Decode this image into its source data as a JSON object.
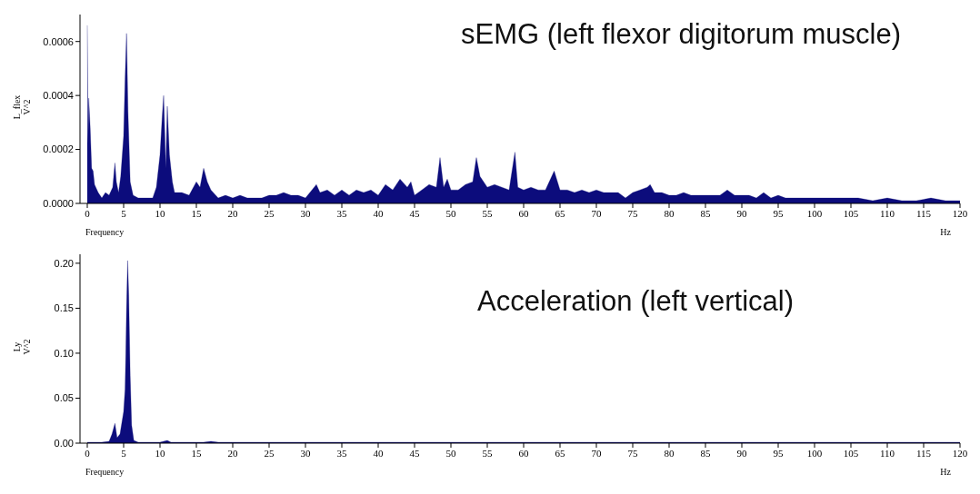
{
  "chart_data": [
    {
      "type": "area",
      "title": "sEMG (left flexor digitorum muscle)",
      "xlabel": "Frequency",
      "ylabel": "L_flex\nV^2",
      "annotations": [
        "Hz"
      ],
      "color": "#0c0c7c",
      "x": [
        0,
        0.1,
        0.2,
        0.4,
        0.6,
        0.8,
        1,
        1.5,
        2,
        2.5,
        3,
        3.5,
        3.8,
        4,
        4.3,
        4.6,
        5,
        5.2,
        5.4,
        5.6,
        5.9,
        6.3,
        7,
        8,
        9,
        9.5,
        10,
        10.3,
        10.5,
        10.8,
        11,
        11.3,
        11.7,
        12,
        13,
        14,
        15,
        15.5,
        16,
        16.5,
        17,
        18,
        19,
        20,
        21,
        22,
        23,
        24,
        25,
        26,
        27,
        28,
        29,
        30,
        31.5,
        32,
        33,
        34,
        35,
        36,
        37,
        38,
        39,
        40,
        41,
        42,
        43,
        44,
        44.5,
        45,
        46,
        47,
        48,
        48.5,
        49,
        49.5,
        50,
        51,
        52,
        53,
        53.5,
        54,
        55,
        56,
        57,
        58,
        58.8,
        59.2,
        60,
        61,
        62,
        63,
        64.2,
        65,
        66,
        67,
        68,
        69,
        70,
        71,
        72,
        73,
        74,
        75,
        76,
        77,
        77.4,
        78,
        79,
        80,
        81,
        82,
        83,
        84,
        85,
        86,
        87,
        88,
        89,
        90,
        91,
        92,
        93,
        94,
        95,
        96,
        97,
        98,
        99,
        100,
        102,
        104,
        106,
        108,
        110,
        112,
        114,
        116,
        118,
        120
      ],
      "values": [
        0.00066,
        0.00022,
        0.00039,
        0.00028,
        0.00013,
        0.00012,
        7e-05,
        4e-05,
        2e-05,
        4e-05,
        3e-05,
        6e-05,
        0.00015,
        8e-05,
        4e-05,
        0.0001,
        0.00025,
        0.00046,
        0.00063,
        0.00034,
        8e-05,
        3e-05,
        2e-05,
        2e-05,
        2e-05,
        6e-05,
        0.00018,
        0.00032,
        0.0004,
        0.00013,
        0.00036,
        0.00018,
        8e-05,
        4e-05,
        4e-05,
        3e-05,
        8e-05,
        6e-05,
        0.00013,
        8e-05,
        5e-05,
        2e-05,
        3e-05,
        2e-05,
        3e-05,
        2e-05,
        2e-05,
        2e-05,
        3e-05,
        3e-05,
        4e-05,
        3e-05,
        3e-05,
        2e-05,
        7e-05,
        4e-05,
        5e-05,
        3e-05,
        5e-05,
        3e-05,
        5e-05,
        4e-05,
        5e-05,
        3e-05,
        7e-05,
        5e-05,
        9e-05,
        6e-05,
        8e-05,
        3e-05,
        5e-05,
        7e-05,
        6e-05,
        0.00017,
        6e-05,
        9e-05,
        5e-05,
        5e-05,
        7e-05,
        8e-05,
        0.00017,
        0.0001,
        6e-05,
        7e-05,
        6e-05,
        5e-05,
        0.00019,
        6e-05,
        5e-05,
        6e-05,
        5e-05,
        5e-05,
        0.00012,
        5e-05,
        5e-05,
        4e-05,
        5e-05,
        4e-05,
        5e-05,
        4e-05,
        4e-05,
        4e-05,
        2e-05,
        4e-05,
        5e-05,
        6e-05,
        7e-05,
        4e-05,
        4e-05,
        3e-05,
        3e-05,
        4e-05,
        3e-05,
        3e-05,
        3e-05,
        3e-05,
        3e-05,
        5e-05,
        3e-05,
        3e-05,
        3e-05,
        2e-05,
        4e-05,
        2e-05,
        3e-05,
        2e-05,
        2e-05,
        2e-05,
        2e-05,
        2e-05,
        2e-05,
        2e-05,
        2e-05,
        1e-05,
        2e-05,
        1e-05,
        1e-05,
        2e-05,
        1e-05,
        1e-05
      ],
      "xlim": [
        -1,
        120
      ],
      "xticks": [
        0,
        5,
        10,
        15,
        20,
        25,
        30,
        35,
        40,
        45,
        50,
        55,
        60,
        65,
        70,
        75,
        80,
        85,
        90,
        95,
        100,
        105,
        110,
        115,
        120
      ],
      "ylim": [
        0,
        0.0007
      ],
      "yticks": [
        {
          "value": 0,
          "label": "0.0000"
        },
        {
          "value": 0.0002,
          "label": "0.0002"
        },
        {
          "value": 0.0004,
          "label": "0.0004"
        },
        {
          "value": 0.0006,
          "label": "0.0006"
        }
      ],
      "grid": false
    },
    {
      "type": "area",
      "title": "Acceleration (left vertical)",
      "xlabel": "Frequency",
      "ylabel": "Ly\nV^2",
      "annotations": [
        "Hz"
      ],
      "color": "#0c0c7c",
      "x": [
        0,
        2,
        3,
        3.4,
        3.8,
        4.1,
        4.5,
        5,
        5.2,
        5.3,
        5.4,
        5.55,
        5.7,
        5.9,
        6.1,
        6.4,
        7,
        9,
        10,
        11,
        11.5,
        13,
        16,
        17,
        18,
        25,
        120
      ],
      "values": [
        0.001,
        0.001,
        0.002,
        0.01,
        0.022,
        0.006,
        0.01,
        0.035,
        0.06,
        0.1,
        0.15,
        0.203,
        0.165,
        0.075,
        0.02,
        0.003,
        0.001,
        0.001,
        0.001,
        0.003,
        0.001,
        0.001,
        0.001,
        0.002,
        0.001,
        0.001,
        0.001
      ],
      "xlim": [
        -1,
        120
      ],
      "xticks": [
        0,
        5,
        10,
        15,
        20,
        25,
        30,
        35,
        40,
        45,
        50,
        55,
        60,
        65,
        70,
        75,
        80,
        85,
        90,
        95,
        100,
        105,
        110,
        115,
        120
      ],
      "ylim": [
        0,
        0.21
      ],
      "yticks": [
        {
          "value": 0,
          "label": "0.00"
        },
        {
          "value": 0.05,
          "label": "0.05"
        },
        {
          "value": 0.1,
          "label": "0.10"
        },
        {
          "value": 0.15,
          "label": "0.15"
        },
        {
          "value": 0.2,
          "label": "0.20"
        }
      ],
      "grid": false
    }
  ]
}
